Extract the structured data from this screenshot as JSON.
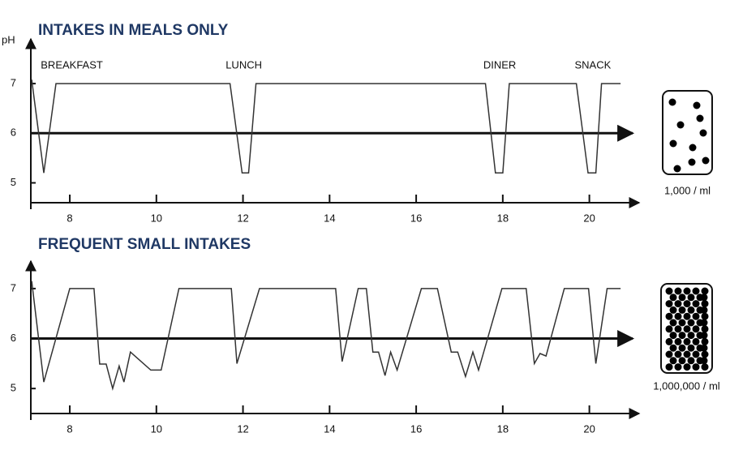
{
  "chart_data": [
    {
      "type": "line",
      "title": "INTAKES IN MEALS ONLY",
      "y_label": "pH",
      "annotations": [
        {
          "text": "BREAKFAST",
          "x": 7.33
        },
        {
          "text": "LUNCH",
          "x": 11.6
        },
        {
          "text": "DINER",
          "x": 17.55
        },
        {
          "text": "SNACK",
          "x": 19.66
        }
      ],
      "x": [
        7.12,
        7.4,
        7.68,
        11.7,
        11.98,
        12.13,
        12.3,
        17.6,
        17.83,
        18.0,
        18.15,
        19.7,
        19.97,
        20.15,
        20.28,
        20.72
      ],
      "values": [
        7.08,
        5.2,
        7.0,
        7.0,
        5.2,
        5.2,
        7.0,
        7.0,
        5.2,
        5.2,
        7.0,
        7.0,
        5.2,
        5.2,
        7.0,
        7.0
      ],
      "color": "#333333",
      "xlim": [
        7.1,
        21
      ],
      "ylim": [
        4.6,
        7.9
      ],
      "xticks": [
        8,
        10,
        12,
        14,
        16,
        18,
        20
      ],
      "yticks": [
        5,
        6,
        7
      ],
      "reference_line": 6,
      "concentration_label": "1,000 / ml"
    },
    {
      "type": "line",
      "title": "FREQUENT SMALL INTAKES",
      "x": [
        7.12,
        7.4,
        8.0,
        8.56,
        8.69,
        8.84,
        8.99,
        9.14,
        9.25,
        9.4,
        9.87,
        10.11,
        10.52,
        11.73,
        11.86,
        12.38,
        14.14,
        14.29,
        14.66,
        14.85,
        15.0,
        15.13,
        15.28,
        15.41,
        15.56,
        16.12,
        16.49,
        16.81,
        16.96,
        17.14,
        17.31,
        17.44,
        17.98,
        18.54,
        18.73,
        18.86,
        19.0,
        19.42,
        19.98,
        20.15,
        20.41,
        20.72
      ],
      "values": [
        7.15,
        5.13,
        7.0,
        7.0,
        5.49,
        5.49,
        5.0,
        5.45,
        5.13,
        5.73,
        5.37,
        5.37,
        7.0,
        7.0,
        5.5,
        7.0,
        7.0,
        5.54,
        7.0,
        7.0,
        5.73,
        5.73,
        5.26,
        5.73,
        5.37,
        7.0,
        7.0,
        5.73,
        5.73,
        5.24,
        5.73,
        5.37,
        7.0,
        7.0,
        5.5,
        5.7,
        5.65,
        7.0,
        7.0,
        5.5,
        7.0,
        7.0
      ],
      "color": "#333333",
      "xlim": [
        7.1,
        21
      ],
      "ylim": [
        4.5,
        7.55
      ],
      "xticks": [
        8,
        10,
        12,
        14,
        16,
        18,
        20
      ],
      "yticks": [
        5,
        6,
        7
      ],
      "reference_line": 6,
      "concentration_label": "1,000,000 / ml"
    }
  ]
}
